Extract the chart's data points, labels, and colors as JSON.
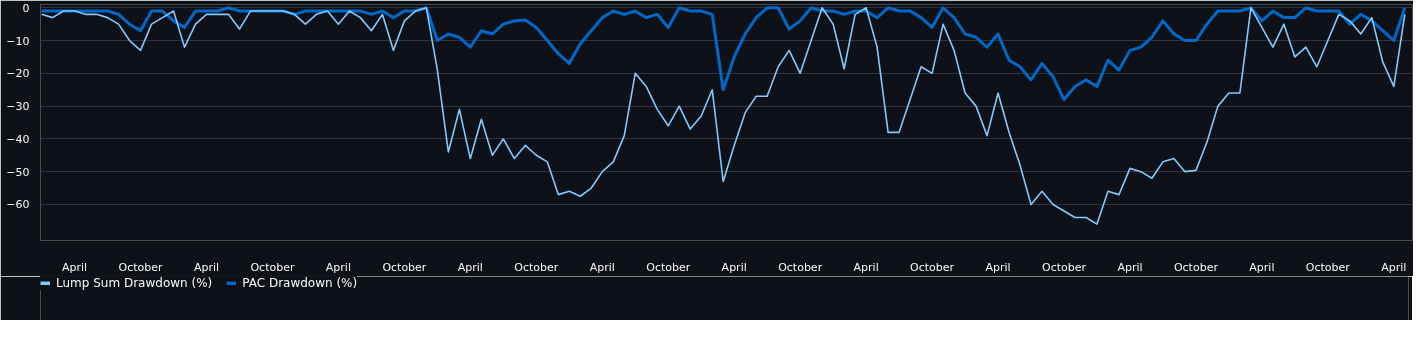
{
  "chart_data": {
    "type": "line",
    "ylim": [
      -71,
      1
    ],
    "categories": [
      null,
      null,
      null,
      "April",
      null,
      null,
      null,
      null,
      null,
      "October",
      null,
      null,
      null,
      null,
      null,
      "April",
      null,
      null,
      null,
      null,
      null,
      "October",
      null,
      null,
      null,
      null,
      null,
      "April",
      null,
      null,
      null,
      null,
      null,
      "October",
      null,
      null,
      null,
      null,
      null,
      "April",
      null,
      null,
      null,
      null,
      null,
      "October",
      null,
      null,
      null,
      null,
      null,
      "April",
      null,
      null,
      null,
      null,
      null,
      "October",
      null,
      null,
      null,
      null,
      null,
      "April",
      null,
      null,
      null,
      null,
      null,
      "October",
      null,
      null,
      null,
      null,
      null,
      "April",
      null,
      null,
      null,
      null,
      null,
      "October",
      null,
      null,
      null,
      null,
      null,
      "April",
      null,
      null,
      null,
      null,
      null,
      "October",
      null,
      null,
      null,
      null,
      null,
      "April",
      null,
      null,
      null,
      null,
      null,
      "October",
      null,
      null,
      null,
      null,
      null,
      "April",
      null,
      null,
      null,
      null,
      null,
      "October",
      null,
      null,
      null,
      null,
      null,
      "April",
      null
    ],
    "yticks": [
      0,
      -10,
      -20,
      -30,
      -40,
      -50,
      -60
    ],
    "grid": "y",
    "legend": "bottom left",
    "line_style": "solid",
    "marker": "none",
    "series": [
      {
        "name": "Lump Sum Drawdown (%)",
        "color": "#83c9ff",
        "values": [
          -2,
          -3,
          -1,
          -1,
          -2,
          -2,
          -3,
          -5,
          -10,
          -13,
          -5,
          -3,
          -1,
          -12,
          -5,
          -2,
          -2,
          -2,
          -6.5,
          -1,
          -1,
          -1,
          -1,
          -2,
          -5,
          -2,
          -1,
          -5,
          -1,
          -3,
          -7,
          -2,
          -13,
          -4,
          -1,
          0,
          -19,
          -44,
          -31,
          -46,
          -34,
          -45,
          -40,
          -46,
          -42,
          -45,
          -47,
          -57,
          -56,
          -57.5,
          -55,
          -50,
          -47,
          -39,
          -20,
          -24,
          -31,
          -36,
          -30,
          -37,
          -33,
          -25,
          -53,
          -42,
          -32,
          -27,
          -27,
          -18,
          -13,
          -20,
          -10,
          0,
          -5,
          -18.6,
          -2,
          0,
          -12,
          -38,
          -38,
          -28,
          -18,
          -20,
          -5,
          -13,
          -26,
          -30,
          -39,
          -26,
          -38,
          -48,
          -60,
          -56,
          -60,
          -62,
          -64,
          -64,
          -66,
          -56,
          -57,
          -49,
          -50,
          -52,
          -47,
          -46,
          -50,
          -49.6,
          -41,
          -30,
          -26,
          -26,
          0,
          -6,
          -12,
          -5,
          -15,
          -12,
          -18,
          -10,
          -2,
          -4,
          -8,
          -3,
          -16.6,
          -24,
          -2
        ]
      },
      {
        "name": "PAC Drawdown (%)",
        "color": "#0068c9",
        "values": [
          -1,
          -1,
          -1,
          -1,
          -1,
          -1,
          -1,
          -2,
          -5,
          -7,
          -1,
          -1,
          -4,
          -6,
          -1,
          -1,
          -1,
          0,
          -1,
          -1,
          -1,
          -1,
          -1,
          -2,
          -1,
          -1,
          -1,
          -1,
          -1,
          -1,
          -2,
          -1,
          -3,
          -1,
          -1,
          0,
          -10,
          -8,
          -9,
          -12,
          -7,
          -8,
          -5,
          -4,
          -3.7,
          -6,
          -10,
          -14,
          -17,
          -11,
          -7,
          -3,
          -1,
          -2,
          -1,
          -3,
          -2,
          -6,
          0,
          -1,
          -1,
          -2,
          -25,
          -15,
          -8,
          -3,
          0,
          0,
          -6.5,
          -4,
          0,
          -1,
          -1,
          -2,
          -1,
          -1,
          -3,
          0,
          -1,
          -1,
          -3,
          -6,
          0,
          -3,
          -8,
          -9,
          -12,
          -8,
          -16,
          -18,
          -22,
          -17,
          -21,
          -28,
          -24,
          -22,
          -24,
          -16,
          -19,
          -13,
          -12,
          -9,
          -4,
          -8,
          -10,
          -10,
          -5,
          -1,
          -1,
          -1,
          0,
          -4,
          -1,
          -3,
          -3,
          0,
          -1,
          -1,
          -1,
          -5,
          -2,
          -4,
          -7,
          -10,
          0
        ]
      }
    ]
  }
}
